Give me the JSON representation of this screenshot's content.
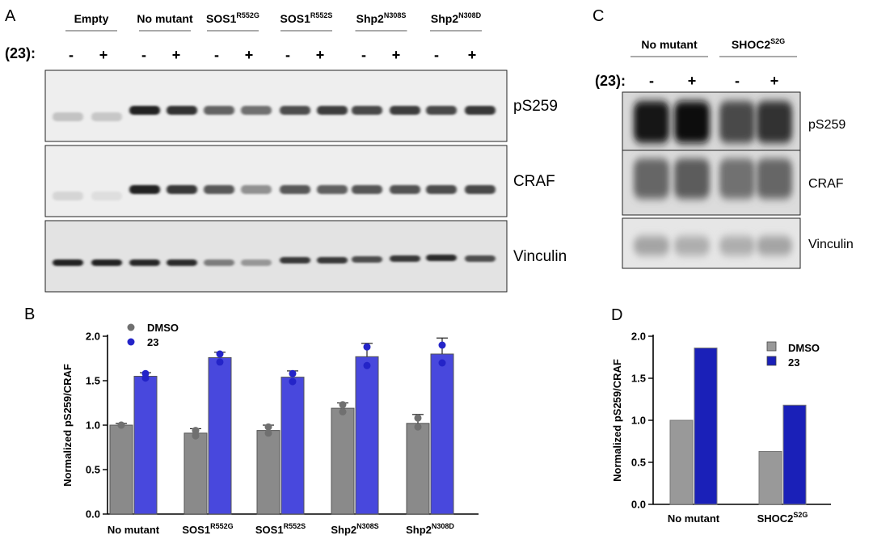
{
  "panels": {
    "A": {
      "letter": "A",
      "treatment_label": "(23):",
      "lanes": [
        {
          "name": "Empty",
          "sup": ""
        },
        {
          "name": "No mutant",
          "sup": ""
        },
        {
          "name": "SOS1",
          "sup": "R552G"
        },
        {
          "name": "SOS1",
          "sup": "R552S"
        },
        {
          "name": "Shp2",
          "sup": "N308S"
        },
        {
          "name": "Shp2",
          "sup": "N308D"
        }
      ],
      "signs": [
        "-",
        "+",
        "-",
        "+",
        "-",
        "+",
        "-",
        "+",
        "-",
        "+",
        "-",
        "+"
      ],
      "blots": [
        "pS259",
        "CRAF",
        "Vinculin"
      ]
    },
    "C": {
      "letter": "C",
      "treatment_label": "(23):",
      "lanes": [
        {
          "name": "No mutant",
          "sup": ""
        },
        {
          "name": "SHOC2",
          "sup": "S2G"
        }
      ],
      "signs": [
        "-",
        "+",
        "-",
        "+"
      ],
      "blots": [
        "pS259",
        "CRAF",
        "Vinculin"
      ]
    },
    "B": {
      "letter": "B"
    },
    "D": {
      "letter": "D"
    }
  },
  "chart_data": [
    {
      "panel": "B",
      "type": "bar",
      "categories": [
        "No mutant",
        "SOS1",
        "SOS1",
        "Shp2",
        "Shp2"
      ],
      "category_sup": [
        "",
        "R552G",
        "R552S",
        "N308S",
        "N308D"
      ],
      "series": [
        {
          "name": "DMSO",
          "color": "#8a8a8a",
          "values": [
            1.0,
            0.91,
            0.94,
            1.19,
            1.02
          ],
          "errors": [
            0.02,
            0.05,
            0.06,
            0.06,
            0.1
          ],
          "points": [
            [
              1.0,
              1.0
            ],
            [
              0.88,
              0.94
            ],
            [
              0.91,
              0.98
            ],
            [
              1.15,
              1.23
            ],
            [
              0.98,
              1.08
            ]
          ]
        },
        {
          "name": "23",
          "color": "#4848dd",
          "values": [
            1.55,
            1.76,
            1.54,
            1.77,
            1.8
          ],
          "errors": [
            0.04,
            0.06,
            0.07,
            0.15,
            0.18
          ],
          "points": [
            [
              1.53,
              1.58
            ],
            [
              1.71,
              1.8
            ],
            [
              1.49,
              1.58
            ],
            [
              1.67,
              1.88
            ],
            [
              1.7,
              1.9
            ]
          ]
        }
      ],
      "ylabel": "Normalized pS259/CRAF",
      "xlabel": "",
      "ylim": [
        0,
        2.0
      ],
      "yticks": [
        "0.0",
        "0.5",
        "1.0",
        "1.5",
        "2.0"
      ],
      "legend": "top-left",
      "grid": false
    },
    {
      "panel": "D",
      "type": "bar",
      "categories": [
        "No mutant",
        "SHOC2"
      ],
      "category_sup": [
        "",
        "S2G"
      ],
      "series": [
        {
          "name": "DMSO",
          "color": "#999999",
          "values": [
            1.0,
            0.63
          ]
        },
        {
          "name": "23",
          "color": "#1a20b8",
          "values": [
            1.86,
            1.18
          ]
        }
      ],
      "ylabel": "Normalized pS259/CRAF",
      "xlabel": "",
      "ylim": [
        0,
        2.0
      ],
      "yticks": [
        "0.0",
        "0.5",
        "1.0",
        "1.5",
        "2.0"
      ],
      "legend": "top-right",
      "grid": false
    }
  ]
}
